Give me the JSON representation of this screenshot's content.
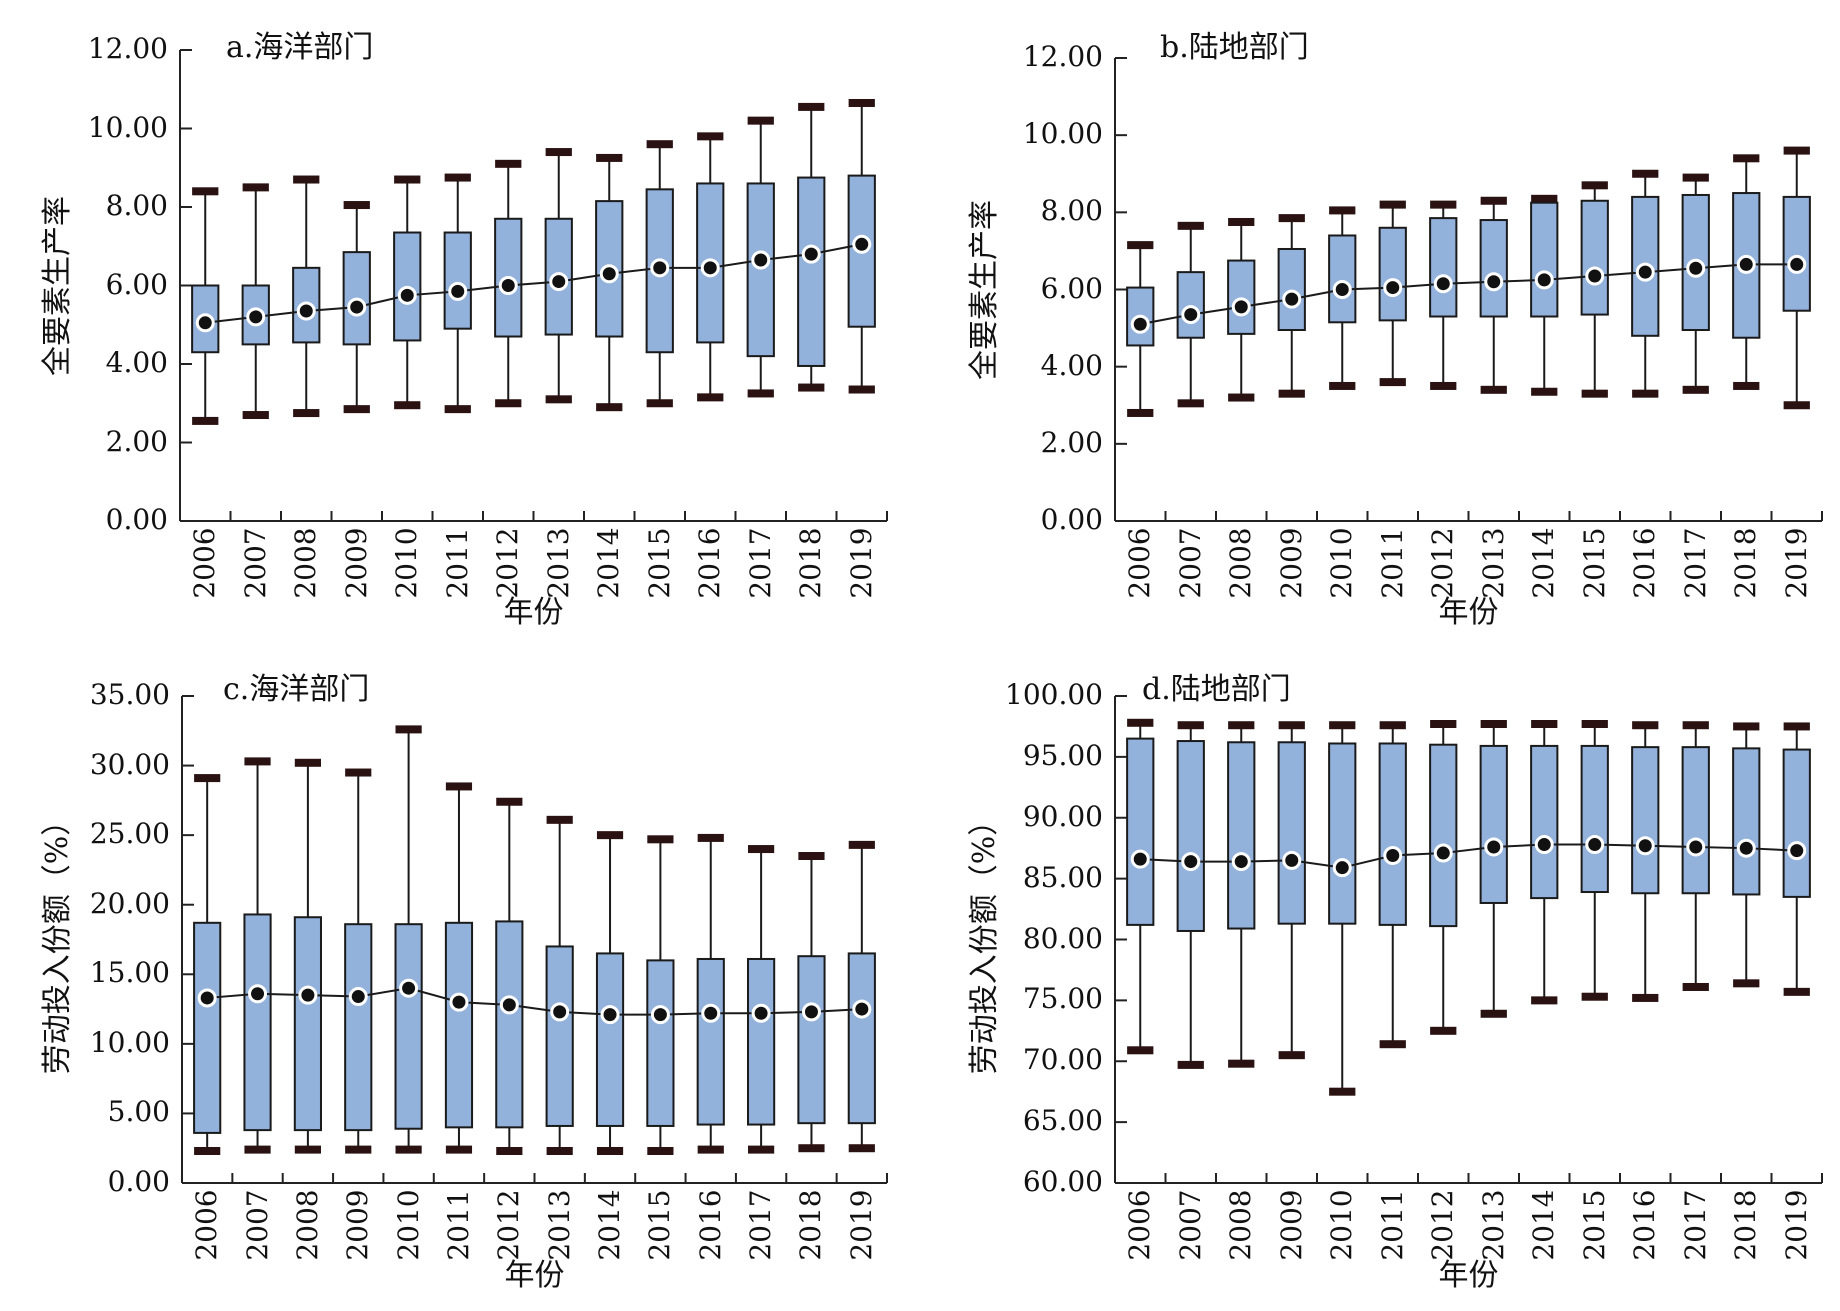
{
  "chart_data": [
    {
      "type": "box",
      "title": "a.海洋部门",
      "xlabel": "年份",
      "ylabel": "全要素生产率",
      "ylim": [
        0,
        12
      ],
      "yticks": [
        "0.00",
        "2.00",
        "4.00",
        "6.00",
        "8.00",
        "10.00",
        "12.00"
      ],
      "categories": [
        "2006",
        "2007",
        "2008",
        "2009",
        "2010",
        "2011",
        "2012",
        "2013",
        "2014",
        "2015",
        "2016",
        "2017",
        "2018",
        "2019"
      ],
      "box_color": "#92b1db",
      "whisker_low": [
        2.55,
        2.7,
        2.75,
        2.85,
        2.95,
        2.85,
        3.0,
        3.1,
        2.9,
        3.0,
        3.15,
        3.25,
        3.4,
        3.35
      ],
      "q1": [
        4.3,
        4.5,
        4.55,
        4.5,
        4.6,
        4.9,
        4.7,
        4.75,
        4.7,
        4.3,
        4.55,
        4.2,
        3.95,
        4.95
      ],
      "q3": [
        6.0,
        6.0,
        6.45,
        6.85,
        7.35,
        7.35,
        7.7,
        7.7,
        8.15,
        8.45,
        8.6,
        8.6,
        8.75,
        8.8
      ],
      "whisker_high": [
        8.4,
        8.5,
        8.7,
        8.05,
        8.7,
        8.75,
        9.1,
        9.4,
        9.25,
        9.6,
        9.8,
        10.2,
        10.55,
        10.65
      ],
      "mean": [
        5.05,
        5.2,
        5.35,
        5.45,
        5.75,
        5.85,
        6.0,
        6.1,
        6.3,
        6.45,
        6.45,
        6.65,
        6.8,
        7.05
      ]
    },
    {
      "type": "box",
      "title": "b.陆地部门",
      "xlabel": "年份",
      "ylabel": "全要素生产率",
      "ylim": [
        0,
        12
      ],
      "yticks": [
        "0.00",
        "2.00",
        "4.00",
        "6.00",
        "8.00",
        "10.00",
        "12.00"
      ],
      "categories": [
        "2006",
        "2007",
        "2008",
        "2009",
        "2010",
        "2011",
        "2012",
        "2013",
        "2014",
        "2015",
        "2016",
        "2017",
        "2018",
        "2019"
      ],
      "box_color": "#92b1db",
      "whisker_low": [
        2.8,
        3.05,
        3.2,
        3.3,
        3.5,
        3.6,
        3.5,
        3.4,
        3.35,
        3.3,
        3.3,
        3.4,
        3.5,
        3.0
      ],
      "q1": [
        4.55,
        4.75,
        4.85,
        4.95,
        5.15,
        5.2,
        5.3,
        5.3,
        5.3,
        5.35,
        4.8,
        4.95,
        4.75,
        5.45
      ],
      "q3": [
        6.05,
        6.45,
        6.75,
        7.05,
        7.4,
        7.6,
        7.85,
        7.8,
        8.25,
        8.3,
        8.4,
        8.45,
        8.5,
        8.4
      ],
      "whisker_high": [
        7.15,
        7.65,
        7.75,
        7.85,
        8.05,
        8.2,
        8.2,
        8.3,
        8.35,
        8.7,
        9.0,
        8.9,
        9.4,
        9.6
      ],
      "mean": [
        5.1,
        5.35,
        5.55,
        5.75,
        6.0,
        6.05,
        6.15,
        6.2,
        6.25,
        6.35,
        6.45,
        6.55,
        6.65,
        6.65
      ]
    },
    {
      "type": "box",
      "title": "c.海洋部门",
      "xlabel": "年份",
      "ylabel": "劳动投入份额（%）",
      "ylim": [
        0,
        35
      ],
      "yticks": [
        "0.00",
        "5.00",
        "10.00",
        "15.00",
        "20.00",
        "25.00",
        "30.00",
        "35.00"
      ],
      "categories": [
        "2006",
        "2007",
        "2008",
        "2009",
        "2010",
        "2011",
        "2012",
        "2013",
        "2014",
        "2015",
        "2016",
        "2017",
        "2018",
        "2019"
      ],
      "box_color": "#92b1db",
      "whisker_low": [
        2.3,
        2.4,
        2.4,
        2.4,
        2.4,
        2.4,
        2.3,
        2.3,
        2.3,
        2.3,
        2.4,
        2.4,
        2.5,
        2.5
      ],
      "q1": [
        3.6,
        3.8,
        3.8,
        3.8,
        3.9,
        4.0,
        4.0,
        4.1,
        4.1,
        4.1,
        4.2,
        4.2,
        4.3,
        4.3
      ],
      "q3": [
        18.7,
        19.3,
        19.1,
        18.6,
        18.6,
        18.7,
        18.8,
        17.0,
        16.5,
        16.0,
        16.1,
        16.1,
        16.3,
        16.5
      ],
      "whisker_high": [
        29.1,
        30.3,
        30.2,
        29.5,
        32.6,
        28.5,
        27.4,
        26.1,
        25.0,
        24.7,
        24.8,
        24.0,
        23.5,
        24.3
      ],
      "mean": [
        13.3,
        13.6,
        13.5,
        13.4,
        14.0,
        13.0,
        12.8,
        12.3,
        12.1,
        12.1,
        12.2,
        12.2,
        12.3,
        12.5
      ]
    },
    {
      "type": "box",
      "title": "d.陆地部门",
      "xlabel": "年份",
      "ylabel": "劳动投入份额（%）",
      "ylim": [
        60,
        100
      ],
      "yticks": [
        "60.00",
        "65.00",
        "70.00",
        "75.00",
        "80.00",
        "85.00",
        "90.00",
        "95.00",
        "100.00"
      ],
      "categories": [
        "2006",
        "2007",
        "2008",
        "2009",
        "2010",
        "2011",
        "2012",
        "2013",
        "2014",
        "2015",
        "2016",
        "2017",
        "2018",
        "2019"
      ],
      "box_color": "#92b1db",
      "whisker_low": [
        70.9,
        69.7,
        69.8,
        70.5,
        67.5,
        71.4,
        72.5,
        73.9,
        75.0,
        75.3,
        75.2,
        76.1,
        76.4,
        75.7
      ],
      "q1": [
        81.2,
        80.7,
        80.9,
        81.3,
        81.3,
        81.2,
        81.1,
        83.0,
        83.4,
        83.9,
        83.8,
        83.8,
        83.7,
        83.5
      ],
      "q3": [
        96.5,
        96.3,
        96.2,
        96.2,
        96.1,
        96.1,
        96.0,
        95.9,
        95.9,
        95.9,
        95.8,
        95.8,
        95.7,
        95.6
      ],
      "whisker_high": [
        97.8,
        97.6,
        97.6,
        97.6,
        97.6,
        97.6,
        97.7,
        97.7,
        97.7,
        97.7,
        97.6,
        97.6,
        97.5,
        97.5
      ],
      "mean": [
        86.6,
        86.4,
        86.4,
        86.5,
        85.9,
        86.9,
        87.1,
        87.6,
        87.8,
        87.8,
        87.7,
        87.6,
        87.5,
        87.3
      ]
    }
  ]
}
